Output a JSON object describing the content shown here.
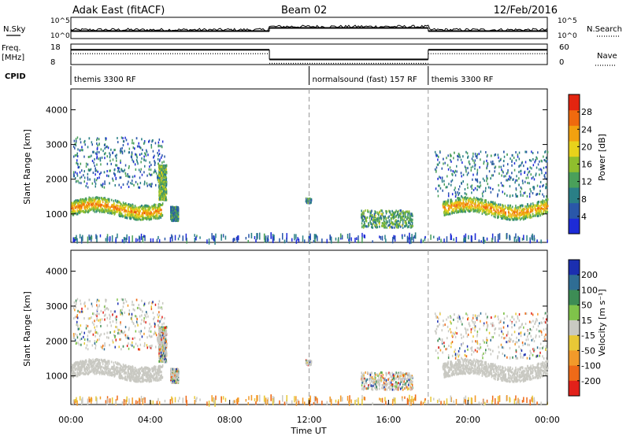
{
  "header": {
    "station": "Adak East (fitACF)",
    "beam": "Beam 02",
    "date": "12/Feb/2016"
  },
  "labels": {
    "nsky": "N.Sky",
    "nsearch": "N.Search",
    "freq": "Freq.",
    "freq_unit": "[MHz]",
    "nave": "Nave",
    "cpid": "CPID",
    "ylabel": "Slant Range [km]",
    "xlabel": "Time UT",
    "power_label": "Power [dB]",
    "velocity_label": "Velocity [m s⁻¹]"
  },
  "panel_ticks": {
    "nsky_left": [
      "10^5",
      "10^0"
    ],
    "nsky_right": [
      "10^5",
      "10^0"
    ],
    "freq_left": [
      "18",
      "8"
    ],
    "nave_right": [
      "60",
      "0"
    ]
  },
  "cpid": [
    {
      "label": "themis 3300 RF",
      "start": 0,
      "end": 12
    },
    {
      "label": "normalsound (fast) 157 RF",
      "start": 12,
      "end": 18
    },
    {
      "label": "themis 3300 RF",
      "start": 18,
      "end": 24
    }
  ],
  "chart_data": {
    "type": "heatmap",
    "x_unit": "hours UT",
    "xlim": [
      0,
      24
    ],
    "x_ticks": [
      0,
      4,
      8,
      12,
      16,
      20,
      24
    ],
    "x_ticklabels": [
      "00:00",
      "04:00",
      "08:00",
      "12:00",
      "16:00",
      "20:00",
      "00:00"
    ],
    "ylim": [
      180,
      4600
    ],
    "y_ticks": [
      1000,
      2000,
      3000,
      4000
    ],
    "y_ticklabels": [
      "1000",
      "2000",
      "3000",
      "4000"
    ],
    "dashed_lines_hours": [
      12,
      18
    ],
    "nsky_series": [
      {
        "start": 0,
        "end": 10,
        "level": 0.35
      },
      {
        "start": 10,
        "end": 18,
        "level": 0.5
      },
      {
        "start": 18,
        "end": 24,
        "level": 0.35
      }
    ],
    "freq_series": [
      {
        "start": 0,
        "end": 10,
        "level": 0.72
      },
      {
        "start": 10,
        "end": 18,
        "level": 0.25
      },
      {
        "start": 18,
        "end": 24,
        "level": 0.72
      }
    ],
    "power_scale": {
      "ticks": [
        4,
        8,
        12,
        16,
        20,
        24,
        28
      ],
      "range": [
        0,
        32
      ],
      "colors": [
        "#1d2bd7",
        "#2a57a9",
        "#2a7f86",
        "#4aa05a",
        "#8fbe2d",
        "#e8d21b",
        "#f2a10f",
        "#ef6a0e",
        "#e32510"
      ]
    },
    "velocity_scale": {
      "ticklabels": [
        "200",
        "100",
        "50",
        "15",
        "-15",
        "-50",
        "-100",
        "-200"
      ],
      "colors": [
        "#1b2fb0",
        "#2f6d94",
        "#3d8c55",
        "#7fc34a",
        "#c9c9c2",
        "#e8c836",
        "#f29a2a",
        "#ee6a18",
        "#e2211a"
      ]
    },
    "scatter_regions": [
      {
        "t0": 0.0,
        "t1": 4.6,
        "r0": 900,
        "r1": 1500,
        "kind": "band",
        "power": 22
      },
      {
        "t0": 0.1,
        "t1": 4.7,
        "r0": 1750,
        "r1": 3200,
        "kind": "diffuse",
        "power": 8
      },
      {
        "t0": 4.4,
        "t1": 4.8,
        "r0": 1400,
        "r1": 2400,
        "kind": "diffuse",
        "power": 14
      },
      {
        "t0": 5.0,
        "t1": 5.4,
        "r0": 800,
        "r1": 1200,
        "kind": "diffuse",
        "power": 10
      },
      {
        "t0": 11.8,
        "t1": 12.1,
        "r0": 1300,
        "r1": 1450,
        "kind": "patch",
        "power": 10
      },
      {
        "t0": 14.6,
        "t1": 17.2,
        "r0": 600,
        "r1": 1100,
        "kind": "diffuse",
        "power": 12
      },
      {
        "t0": 18.7,
        "t1": 24.0,
        "r0": 900,
        "r1": 1500,
        "kind": "band",
        "power": 22
      },
      {
        "t0": 18.3,
        "t1": 24.0,
        "r0": 1500,
        "r1": 2800,
        "kind": "diffuse",
        "power": 8
      },
      {
        "t0": 0.0,
        "t1": 24.0,
        "r0": 180,
        "r1": 380,
        "kind": "ground",
        "power": 6
      }
    ]
  }
}
